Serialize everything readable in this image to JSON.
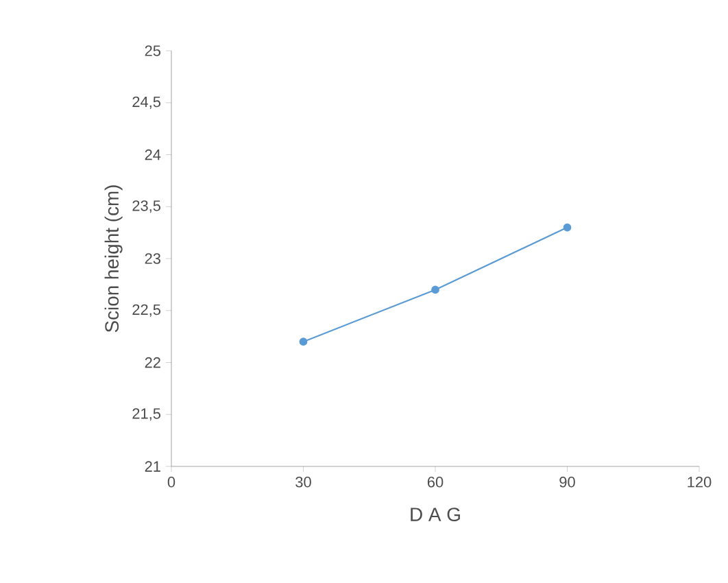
{
  "chart_data": {
    "type": "line",
    "xlabel": "D A G",
    "ylabel": "Scion height  (cm)",
    "x": [
      30,
      60,
      90
    ],
    "series": [
      {
        "color": "#5b9bd5",
        "values": [
          22.2,
          22.7,
          23.3
        ]
      }
    ],
    "xlim": [
      0,
      120
    ],
    "xticks": [
      0,
      30,
      60,
      90,
      120
    ],
    "ylim": [
      21,
      25
    ],
    "yticks": [
      21,
      {
        "value": 21.5,
        "label": "21,5"
      },
      22,
      {
        "value": 22.5,
        "label": "22,5"
      },
      23,
      {
        "value": 23.5,
        "label": "23,5"
      },
      24,
      {
        "value": 24.5,
        "label": "24,5"
      },
      25
    ],
    "marker": "circle",
    "line_style": "solid",
    "grid": false
  }
}
